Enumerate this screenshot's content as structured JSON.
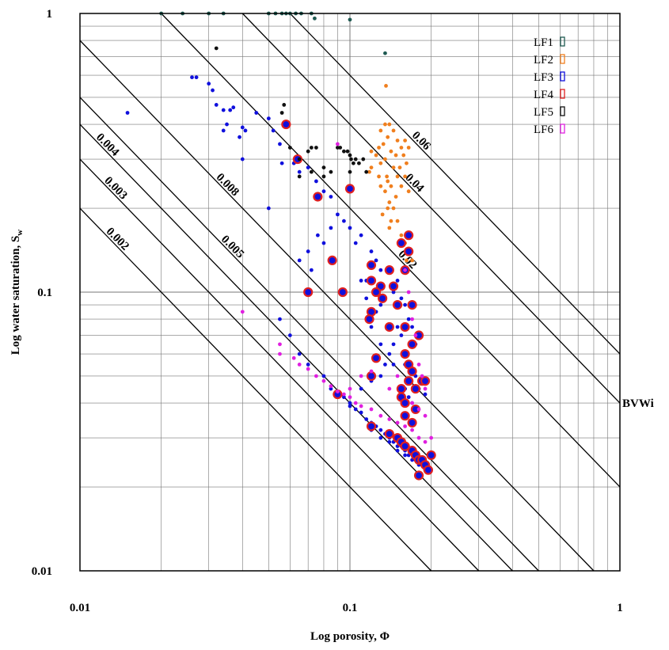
{
  "chart_data": {
    "type": "scatter",
    "xlabel": "Log porosity, Φ",
    "ylabel": "Log water saturation, S",
    "ylabel_sub": "w",
    "xscale": "log",
    "yscale": "log",
    "xlim": [
      0.01,
      1
    ],
    "ylim": [
      0.01,
      1
    ],
    "grid": true,
    "legend_position": "top-right",
    "x_ticks": [
      {
        "value": 0.01,
        "label": "0.01"
      },
      {
        "value": 0.1,
        "label": "0.1"
      },
      {
        "value": 1,
        "label": "1"
      }
    ],
    "y_ticks": [
      {
        "value": 0.01,
        "label": "0.01"
      },
      {
        "value": 0.1,
        "label": "0.1"
      },
      {
        "value": 1,
        "label": "1"
      }
    ],
    "bvw_lines": [
      {
        "value": 0.002,
        "label": "0.002"
      },
      {
        "value": 0.003,
        "label": "0.003"
      },
      {
        "value": 0.004,
        "label": "0.004"
      },
      {
        "value": 0.005,
        "label": "0.005"
      },
      {
        "value": 0.008,
        "label": "0.008"
      },
      {
        "value": 0.02,
        "label": "0.02"
      },
      {
        "value": 0.04,
        "label": "0.04"
      },
      {
        "value": 0.06,
        "label": "0.06"
      }
    ],
    "bvw_axis_label": "BVWi",
    "bvw_axis_value": 0.04,
    "series": [
      {
        "name": "LF1",
        "color": "#1f5a52",
        "points": [
          [
            0.02,
            1
          ],
          [
            0.024,
            1
          ],
          [
            0.03,
            1
          ],
          [
            0.034,
            1
          ],
          [
            0.05,
            1
          ],
          [
            0.053,
            1
          ],
          [
            0.056,
            1
          ],
          [
            0.058,
            1
          ],
          [
            0.06,
            1
          ],
          [
            0.063,
            1
          ],
          [
            0.066,
            1
          ],
          [
            0.072,
            1
          ],
          [
            0.074,
            0.96
          ],
          [
            0.1,
            0.95
          ],
          [
            0.135,
            0.72
          ]
        ]
      },
      {
        "name": "LF2",
        "color": "#f07f1e",
        "points": [
          [
            0.13,
            0.38
          ],
          [
            0.135,
            0.4
          ],
          [
            0.14,
            0.4
          ],
          [
            0.145,
            0.38
          ],
          [
            0.138,
            0.36
          ],
          [
            0.15,
            0.35
          ],
          [
            0.16,
            0.35
          ],
          [
            0.165,
            0.33
          ],
          [
            0.133,
            0.34
          ],
          [
            0.128,
            0.33
          ],
          [
            0.142,
            0.32
          ],
          [
            0.155,
            0.33
          ],
          [
            0.12,
            0.32
          ],
          [
            0.125,
            0.31
          ],
          [
            0.135,
            0.3
          ],
          [
            0.148,
            0.31
          ],
          [
            0.158,
            0.31
          ],
          [
            0.162,
            0.29
          ],
          [
            0.13,
            0.29
          ],
          [
            0.12,
            0.28
          ],
          [
            0.145,
            0.28
          ],
          [
            0.153,
            0.28
          ],
          [
            0.118,
            0.27
          ],
          [
            0.128,
            0.26
          ],
          [
            0.137,
            0.26
          ],
          [
            0.15,
            0.26
          ],
          [
            0.16,
            0.26
          ],
          [
            0.138,
            0.25
          ],
          [
            0.13,
            0.24
          ],
          [
            0.142,
            0.24
          ],
          [
            0.155,
            0.24
          ],
          [
            0.165,
            0.23
          ],
          [
            0.135,
            0.23
          ],
          [
            0.148,
            0.22
          ],
          [
            0.14,
            0.21
          ],
          [
            0.138,
            0.2
          ],
          [
            0.145,
            0.2
          ],
          [
            0.132,
            0.19
          ],
          [
            0.142,
            0.18
          ],
          [
            0.15,
            0.18
          ],
          [
            0.14,
            0.17
          ],
          [
            0.155,
            0.16
          ],
          [
            0.165,
            0.16
          ],
          [
            0.16,
            0.15
          ],
          [
            0.168,
            0.14
          ],
          [
            0.162,
            0.13
          ],
          [
            0.158,
            0.12
          ],
          [
            0.17,
            0.13
          ],
          [
            0.136,
            0.55
          ]
        ]
      },
      {
        "name": "LF3",
        "color": "#1010dd",
        "points": [
          [
            0.015,
            0.44
          ],
          [
            0.026,
            0.59
          ],
          [
            0.027,
            0.59
          ],
          [
            0.03,
            0.56
          ],
          [
            0.031,
            0.53
          ],
          [
            0.032,
            0.47
          ],
          [
            0.034,
            0.45
          ],
          [
            0.036,
            0.45
          ],
          [
            0.037,
            0.46
          ],
          [
            0.035,
            0.4
          ],
          [
            0.034,
            0.38
          ],
          [
            0.04,
            0.39
          ],
          [
            0.041,
            0.38
          ],
          [
            0.039,
            0.36
          ],
          [
            0.04,
            0.3
          ],
          [
            0.045,
            0.44
          ],
          [
            0.05,
            0.42
          ],
          [
            0.052,
            0.38
          ],
          [
            0.055,
            0.34
          ],
          [
            0.056,
            0.29
          ],
          [
            0.05,
            0.2
          ],
          [
            0.062,
            0.29
          ],
          [
            0.065,
            0.27
          ],
          [
            0.07,
            0.28
          ],
          [
            0.075,
            0.25
          ],
          [
            0.08,
            0.23
          ],
          [
            0.085,
            0.22
          ],
          [
            0.09,
            0.19
          ],
          [
            0.095,
            0.18
          ],
          [
            0.085,
            0.17
          ],
          [
            0.076,
            0.16
          ],
          [
            0.08,
            0.15
          ],
          [
            0.07,
            0.14
          ],
          [
            0.065,
            0.13
          ],
          [
            0.072,
            0.12
          ],
          [
            0.1,
            0.17
          ],
          [
            0.11,
            0.16
          ],
          [
            0.105,
            0.15
          ],
          [
            0.12,
            0.14
          ],
          [
            0.125,
            0.13
          ],
          [
            0.13,
            0.12
          ],
          [
            0.115,
            0.11
          ],
          [
            0.14,
            0.12
          ],
          [
            0.15,
            0.11
          ],
          [
            0.145,
            0.1
          ],
          [
            0.155,
            0.095
          ],
          [
            0.16,
            0.09
          ],
          [
            0.165,
            0.08
          ],
          [
            0.17,
            0.075
          ],
          [
            0.18,
            0.07
          ],
          [
            0.175,
            0.065
          ],
          [
            0.15,
            0.075
          ],
          [
            0.155,
            0.07
          ],
          [
            0.145,
            0.065
          ],
          [
            0.14,
            0.06
          ],
          [
            0.135,
            0.055
          ],
          [
            0.13,
            0.05
          ],
          [
            0.12,
            0.048
          ],
          [
            0.16,
            0.045
          ],
          [
            0.165,
            0.042
          ],
          [
            0.17,
            0.04
          ],
          [
            0.18,
            0.045
          ],
          [
            0.19,
            0.043
          ],
          [
            0.11,
            0.045
          ],
          [
            0.1,
            0.04
          ],
          [
            0.095,
            0.042
          ],
          [
            0.09,
            0.044
          ],
          [
            0.085,
            0.045
          ],
          [
            0.1,
            0.039
          ],
          [
            0.105,
            0.038
          ],
          [
            0.11,
            0.037
          ],
          [
            0.115,
            0.035
          ],
          [
            0.12,
            0.034
          ],
          [
            0.125,
            0.033
          ],
          [
            0.13,
            0.032
          ],
          [
            0.135,
            0.031
          ],
          [
            0.14,
            0.03
          ],
          [
            0.145,
            0.029
          ],
          [
            0.15,
            0.028
          ],
          [
            0.155,
            0.028
          ],
          [
            0.16,
            0.027
          ],
          [
            0.165,
            0.026
          ],
          [
            0.17,
            0.025
          ],
          [
            0.175,
            0.025
          ],
          [
            0.18,
            0.024
          ],
          [
            0.185,
            0.024
          ],
          [
            0.19,
            0.023
          ],
          [
            0.12,
            0.032
          ],
          [
            0.13,
            0.03
          ],
          [
            0.14,
            0.029
          ],
          [
            0.15,
            0.027
          ],
          [
            0.16,
            0.026
          ],
          [
            0.055,
            0.08
          ],
          [
            0.06,
            0.07
          ],
          [
            0.065,
            0.06
          ],
          [
            0.07,
            0.055
          ],
          [
            0.08,
            0.05
          ],
          [
            0.11,
            0.11
          ],
          [
            0.115,
            0.095
          ],
          [
            0.125,
            0.085
          ],
          [
            0.13,
            0.09
          ],
          [
            0.12,
            0.075
          ],
          [
            0.16,
            0.055
          ],
          [
            0.175,
            0.05
          ],
          [
            0.185,
            0.048
          ],
          [
            0.13,
            0.065
          ],
          [
            0.145,
            0.055
          ]
        ]
      },
      {
        "name": "LF4",
        "color": "#e02020",
        "points": [
          [
            0.058,
            0.4
          ],
          [
            0.064,
            0.3
          ],
          [
            0.076,
            0.22
          ],
          [
            0.1,
            0.235
          ],
          [
            0.086,
            0.13
          ],
          [
            0.07,
            0.1
          ],
          [
            0.094,
            0.1
          ],
          [
            0.12,
            0.125
          ],
          [
            0.14,
            0.12
          ],
          [
            0.16,
            0.12
          ],
          [
            0.165,
            0.14
          ],
          [
            0.165,
            0.16
          ],
          [
            0.155,
            0.15
          ],
          [
            0.13,
            0.105
          ],
          [
            0.145,
            0.105
          ],
          [
            0.12,
            0.11
          ],
          [
            0.125,
            0.1
          ],
          [
            0.132,
            0.095
          ],
          [
            0.12,
            0.085
          ],
          [
            0.118,
            0.08
          ],
          [
            0.14,
            0.075
          ],
          [
            0.16,
            0.075
          ],
          [
            0.17,
            0.065
          ],
          [
            0.165,
            0.055
          ],
          [
            0.16,
            0.06
          ],
          [
            0.125,
            0.058
          ],
          [
            0.12,
            0.05
          ],
          [
            0.165,
            0.048
          ],
          [
            0.18,
            0.07
          ],
          [
            0.17,
            0.09
          ],
          [
            0.15,
            0.09
          ],
          [
            0.155,
            0.045
          ],
          [
            0.17,
            0.052
          ],
          [
            0.185,
            0.048
          ],
          [
            0.19,
            0.048
          ],
          [
            0.175,
            0.045
          ],
          [
            0.155,
            0.042
          ],
          [
            0.16,
            0.04
          ],
          [
            0.175,
            0.038
          ],
          [
            0.16,
            0.036
          ],
          [
            0.09,
            0.043
          ],
          [
            0.12,
            0.033
          ],
          [
            0.14,
            0.031
          ],
          [
            0.15,
            0.03
          ],
          [
            0.155,
            0.029
          ],
          [
            0.16,
            0.028
          ],
          [
            0.17,
            0.027
          ],
          [
            0.175,
            0.026
          ],
          [
            0.18,
            0.025
          ],
          [
            0.185,
            0.025
          ],
          [
            0.19,
            0.024
          ],
          [
            0.195,
            0.023
          ],
          [
            0.17,
            0.034
          ],
          [
            0.2,
            0.026
          ],
          [
            0.18,
            0.022
          ]
        ]
      },
      {
        "name": "LF5",
        "color": "#111111",
        "points": [
          [
            0.032,
            0.75
          ],
          [
            0.057,
            0.47
          ],
          [
            0.056,
            0.44
          ],
          [
            0.06,
            0.33
          ],
          [
            0.065,
            0.3
          ],
          [
            0.07,
            0.32
          ],
          [
            0.072,
            0.33
          ],
          [
            0.075,
            0.33
          ],
          [
            0.065,
            0.26
          ],
          [
            0.072,
            0.27
          ],
          [
            0.09,
            0.33
          ],
          [
            0.092,
            0.33
          ],
          [
            0.095,
            0.32
          ],
          [
            0.098,
            0.32
          ],
          [
            0.1,
            0.31
          ],
          [
            0.101,
            0.3
          ],
          [
            0.103,
            0.29
          ],
          [
            0.105,
            0.3
          ],
          [
            0.108,
            0.29
          ],
          [
            0.112,
            0.3
          ],
          [
            0.115,
            0.27
          ],
          [
            0.08,
            0.28
          ],
          [
            0.085,
            0.27
          ],
          [
            0.08,
            0.26
          ],
          [
            0.1,
            0.27
          ]
        ]
      },
      {
        "name": "LF6",
        "color": "#e020e0",
        "points": [
          [
            0.04,
            0.085
          ],
          [
            0.055,
            0.065
          ],
          [
            0.055,
            0.06
          ],
          [
            0.062,
            0.058
          ],
          [
            0.065,
            0.055
          ],
          [
            0.07,
            0.053
          ],
          [
            0.075,
            0.05
          ],
          [
            0.08,
            0.048
          ],
          [
            0.085,
            0.046
          ],
          [
            0.09,
            0.044
          ],
          [
            0.095,
            0.043
          ],
          [
            0.1,
            0.042
          ],
          [
            0.105,
            0.04
          ],
          [
            0.11,
            0.039
          ],
          [
            0.12,
            0.038
          ],
          [
            0.13,
            0.036
          ],
          [
            0.14,
            0.035
          ],
          [
            0.15,
            0.034
          ],
          [
            0.16,
            0.033
          ],
          [
            0.17,
            0.032
          ],
          [
            0.18,
            0.03
          ],
          [
            0.19,
            0.029
          ],
          [
            0.1,
            0.045
          ],
          [
            0.11,
            0.05
          ],
          [
            0.12,
            0.052
          ],
          [
            0.14,
            0.045
          ],
          [
            0.15,
            0.05
          ],
          [
            0.17,
            0.04
          ],
          [
            0.18,
            0.038
          ],
          [
            0.19,
            0.036
          ],
          [
            0.09,
            0.34
          ],
          [
            0.16,
            0.12
          ],
          [
            0.165,
            0.1
          ],
          [
            0.17,
            0.08
          ],
          [
            0.175,
            0.07
          ],
          [
            0.18,
            0.055
          ],
          [
            0.185,
            0.05
          ],
          [
            0.19,
            0.045
          ],
          [
            0.2,
            0.03
          ]
        ]
      }
    ]
  }
}
